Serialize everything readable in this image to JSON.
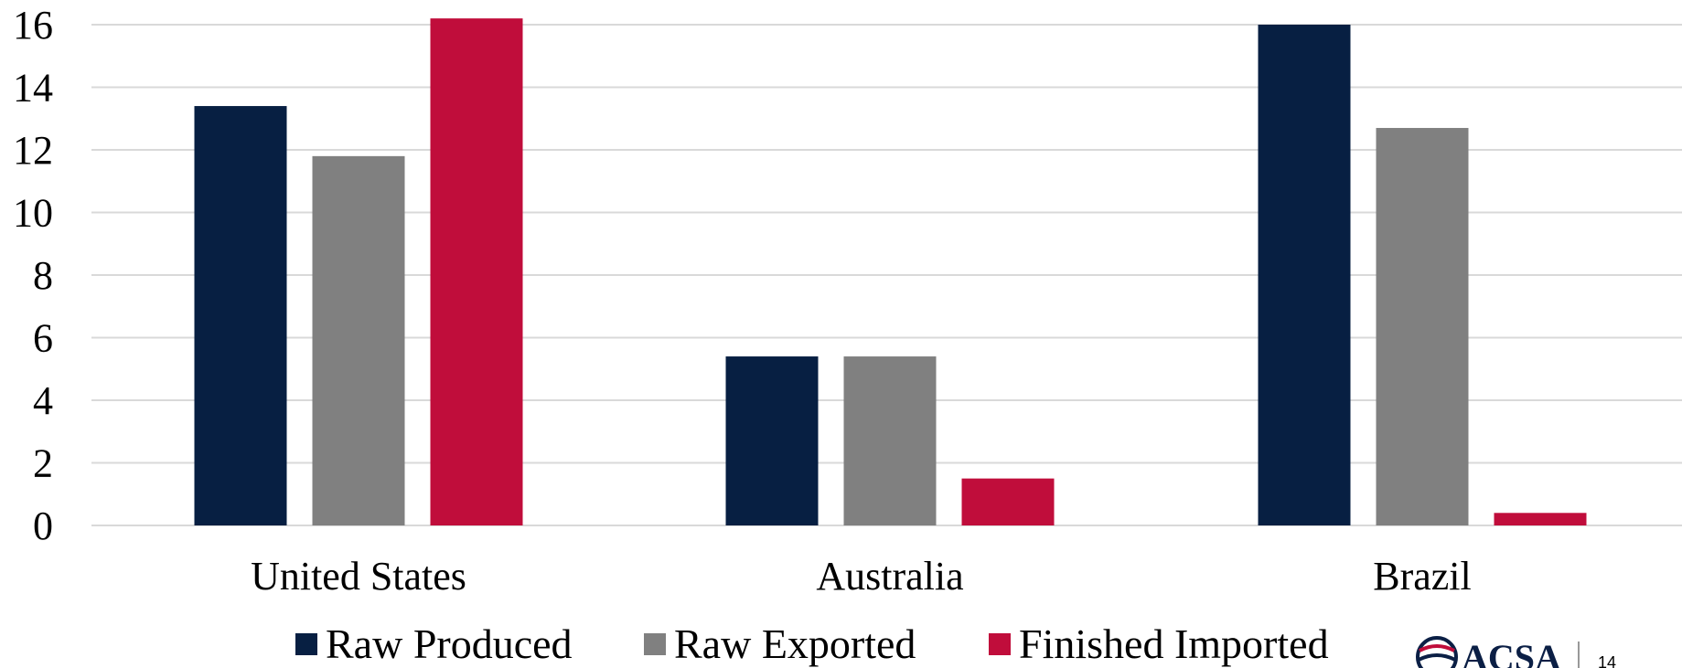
{
  "chart_data": {
    "type": "bar",
    "categories": [
      "United States",
      "Australia",
      "Brazil"
    ],
    "series": [
      {
        "name": "Raw Produced",
        "values": [
          13.4,
          5.4,
          16.0
        ],
        "color": "#071f42"
      },
      {
        "name": "Raw Exported",
        "values": [
          11.8,
          5.4,
          12.7
        ],
        "color": "#808080"
      },
      {
        "name": "Finished Imported",
        "values": [
          16.2,
          1.5,
          0.4
        ],
        "color": "#c00d3b"
      }
    ],
    "title": "",
    "xlabel": "",
    "ylabel": "",
    "ylim": [
      0,
      16
    ],
    "yticks": [
      0,
      2,
      4,
      6,
      8,
      10,
      12,
      14,
      16
    ],
    "grid": true,
    "legend_position": "bottom"
  },
  "branding": {
    "logo_text": "ACSA",
    "page_number": "14"
  },
  "colors": {
    "gridline": "#d9d9d9",
    "logo_navy": "#0b1f45",
    "logo_red": "#c00d3b"
  }
}
